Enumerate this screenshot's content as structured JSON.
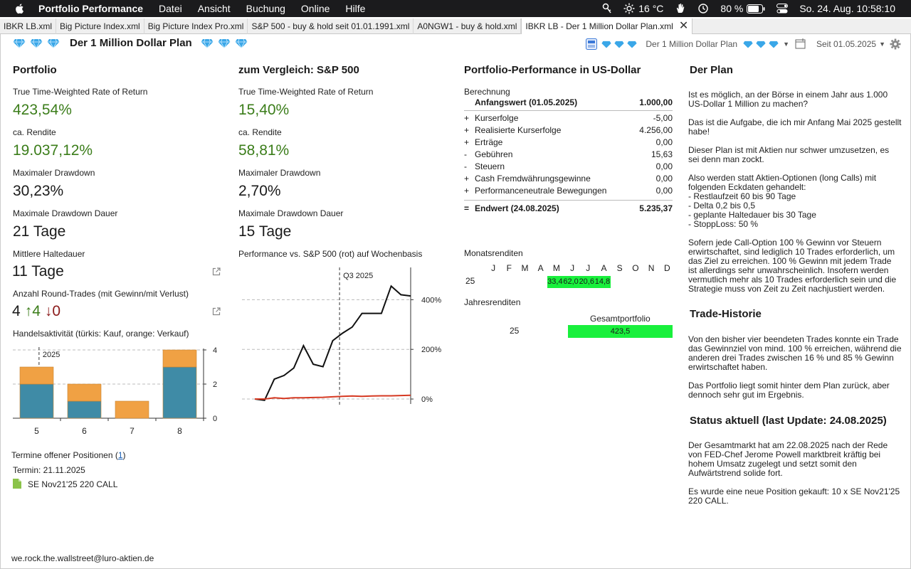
{
  "menubar": {
    "app_name": "Portfolio Performance",
    "menus": [
      "Datei",
      "Ansicht",
      "Buchung",
      "Online",
      "Hilfe"
    ],
    "weather": "16 °C",
    "battery": "80 %",
    "clock": "So. 24. Aug.  10:58:10"
  },
  "tabs": [
    {
      "label": "IBKR LB.xml"
    },
    {
      "label": "Big Picture Index.xml"
    },
    {
      "label": "Big Picture Index Pro.xml"
    },
    {
      "label": "S&P 500 - buy & hold seit 01.01.1991.xml"
    },
    {
      "label": "A0NGW1 - buy & hold.xml"
    },
    {
      "label": "IBKR LB - Der 1 Million Dollar Plan.xml"
    }
  ],
  "titlebar": {
    "title": "Der 1 Million Dollar Plan",
    "view_name": "Der 1 Million Dollar Plan",
    "period": "Seit 01.05.2025"
  },
  "portfolio": {
    "title": "Portfolio",
    "ttwror_label": "True Time-Weighted Rate of Return",
    "ttwror_value": "423,54%",
    "rendite_label": "ca. Rendite",
    "rendite_value": "19.037,12%",
    "dd_label": "Maximaler Drawdown",
    "dd_value": "30,23%",
    "dd_duration_label": "Maximale Drawdown Dauer",
    "dd_duration_value": "21 Tage",
    "holding_label": "Mittlere Haltedauer",
    "holding_value": "11 Tage",
    "trades_label": "Anzahl Round-Trades (mit Gewinn/mit Verlust)",
    "trades_total": "4",
    "trades_win": "4",
    "trades_loss": "0",
    "activity_label": "Handelsaktivität (türkis: Kauf, orange: Verkauf)",
    "termine_label": "Termine offener Positionen (",
    "termine_count": "1",
    "termine_close": ")",
    "termin_date": "Termin: 21.11.2025",
    "termin_position": "SE Nov21'25 220 CALL"
  },
  "comparison": {
    "title": "zum Vergleich: S&P 500",
    "ttwror_label": "True Time-Weighted Rate of Return",
    "ttwror_value": "15,40%",
    "rendite_label": "ca. Rendite",
    "rendite_value": "58,81%",
    "dd_label": "Maximaler Drawdown",
    "dd_value": "2,70%",
    "dd_duration_label": "Maximale Drawdown Dauer",
    "dd_duration_value": "15 Tage",
    "chart_label": "Performance vs. S&P 500 (rot) auf Wochenbasis"
  },
  "performance_usd": {
    "title": "Portfolio-Performance in US-Dollar",
    "calc_label": "Berechnung",
    "rows": [
      {
        "op": "",
        "name": "Anfangswert (01.05.2025)",
        "value": "1.000,00",
        "bold": true
      },
      {
        "op": "+",
        "name": "Kurserfolge",
        "value": "-5,00",
        "bold": false
      },
      {
        "op": "+",
        "name": "Realisierte Kurserfolge",
        "value": "4.256,00",
        "bold": false
      },
      {
        "op": "+",
        "name": "Erträge",
        "value": "0,00",
        "bold": false
      },
      {
        "op": "-",
        "name": "Gebühren",
        "value": "15,63",
        "bold": false
      },
      {
        "op": "-",
        "name": "Steuern",
        "value": "0,00",
        "bold": false
      },
      {
        "op": "+",
        "name": "Cash Fremdwährungsgewinne",
        "value": "0,00",
        "bold": false
      },
      {
        "op": "+",
        "name": "Performanceneutrale Bewegungen",
        "value": "0,00",
        "bold": false
      },
      {
        "op": "=",
        "name": "Endwert (24.08.2025)",
        "value": "5.235,37",
        "bold": true
      }
    ],
    "monthly_label": "Monatsrenditen",
    "month_headers": [
      "J",
      "F",
      "M",
      "A",
      "M",
      "J",
      "J",
      "A",
      "S",
      "O",
      "N",
      "D"
    ],
    "monthly_year": "25",
    "monthly_values": [
      "",
      "",
      "",
      "",
      "33,4",
      "62,0",
      "20,6",
      "14,8",
      "",
      "",
      "",
      ""
    ],
    "yearly_label": "Jahresrenditen",
    "yearly_header": "Gesamtportfolio",
    "yearly_year": "25",
    "yearly_value": "423,5"
  },
  "plan": {
    "title": "Der Plan",
    "paragraphs": [
      "Ist es möglich, an der Börse in einem Jahr aus 1.000 US-Dollar 1 Million zu machen?",
      "Das ist die Aufgabe, die ich mir Anfang Mai 2025 gestellt habe!",
      "Dieser Plan ist mit Aktien nur schwer umzusetzen, es sei denn man zockt.",
      "Also werden statt Aktien-Optionen (long Calls) mit folgenden Eckdaten gehandelt:\n- Restlaufzeit 60 bis 90 Tage\n- Delta 0,2 bis 0,5\n- geplante Haltedauer bis 30 Tage\n- StoppLoss: 50 %",
      "Sofern jede Call-Option 100 % Gewinn vor Steuern erwirtschaftet, sind lediglich 10 Trades erforderlich, um das Ziel zu erreichen. 100 % Gewinn mit jedem Trade ist allerdings sehr unwahrscheinlich. Insofern werden vermutlich mehr als 10 Trades erforderlich sein und die Strategie muss von Zeit zu Zeit nachjustiert werden."
    ],
    "history_title": "Trade-Historie",
    "history_paragraphs": [
      "Von den bisher vier beendeten Trades konnte ein Trade das Gewinnziel von mind. 100 % erreichen, während die anderen drei Trades zwischen 16 % und 85 % Gewinn erwirtschaftet haben.",
      "Das Portfolio liegt somit hinter dem Plan zurück, aber dennoch sehr gut im Ergebnis."
    ],
    "status_title": "Status aktuell (last Update: 24.08.2025)",
    "status_paragraphs": [
      "Der Gesamtmarkt hat am 22.08.2025 nach der Rede von FED-Chef Jerome Powell marktbreit kräftig bei hohem Umsatz zugelegt und setzt somit den Aufwärtstrend solide fort.",
      "Es wurde eine neue Position gekauft: 10 x SE Nov21'25 220 CALL."
    ]
  },
  "footer": {
    "email": "we.rock.the.wallstreet@luro-aktien.de"
  },
  "colors": {
    "green_text": "#3b7d1a",
    "buy": "#3f8ba6",
    "sell": "#f0a144",
    "heat_green": "#19f03c",
    "loss_red": "#8b1a1a",
    "sp500_line": "#d63a23"
  },
  "chart_data": [
    {
      "type": "bar",
      "title": "",
      "categories": [
        "5",
        "6",
        "7",
        "8"
      ],
      "series": [
        {
          "values": [
            2,
            1,
            0,
            3
          ]
        },
        {
          "values": [
            1,
            1,
            1,
            1
          ]
        }
      ],
      "ylim": [
        0,
        4
      ],
      "yticks": [
        0,
        2,
        4
      ],
      "annotation": "2025",
      "stacked": true
    },
    {
      "type": "line",
      "title": "",
      "x": [
        "2025-05-01",
        "2025-05-08",
        "2025-05-15",
        "2025-05-22",
        "2025-05-29",
        "2025-06-05",
        "2025-06-12",
        "2025-06-19",
        "2025-06-26",
        "2025-07-03",
        "2025-07-10",
        "2025-07-17",
        "2025-07-24",
        "2025-07-31",
        "2025-08-07",
        "2025-08-14",
        "2025-08-21"
      ],
      "series": [
        {
          "values": [
            0,
            -5,
            80,
            95,
            125,
            215,
            140,
            130,
            235,
            265,
            290,
            345,
            345,
            345,
            455,
            420,
            415
          ]
        },
        {
          "values": [
            0,
            0,
            5,
            2,
            5,
            5,
            6,
            7,
            9,
            11,
            12,
            11,
            12,
            13,
            13,
            14,
            15
          ]
        }
      ],
      "ylim": [
        -20,
        530
      ],
      "yticks": [
        0,
        200,
        400
      ],
      "ytick_labels": [
        "0%",
        "200%",
        "400%"
      ],
      "annotation": "Q3 2025"
    }
  ]
}
